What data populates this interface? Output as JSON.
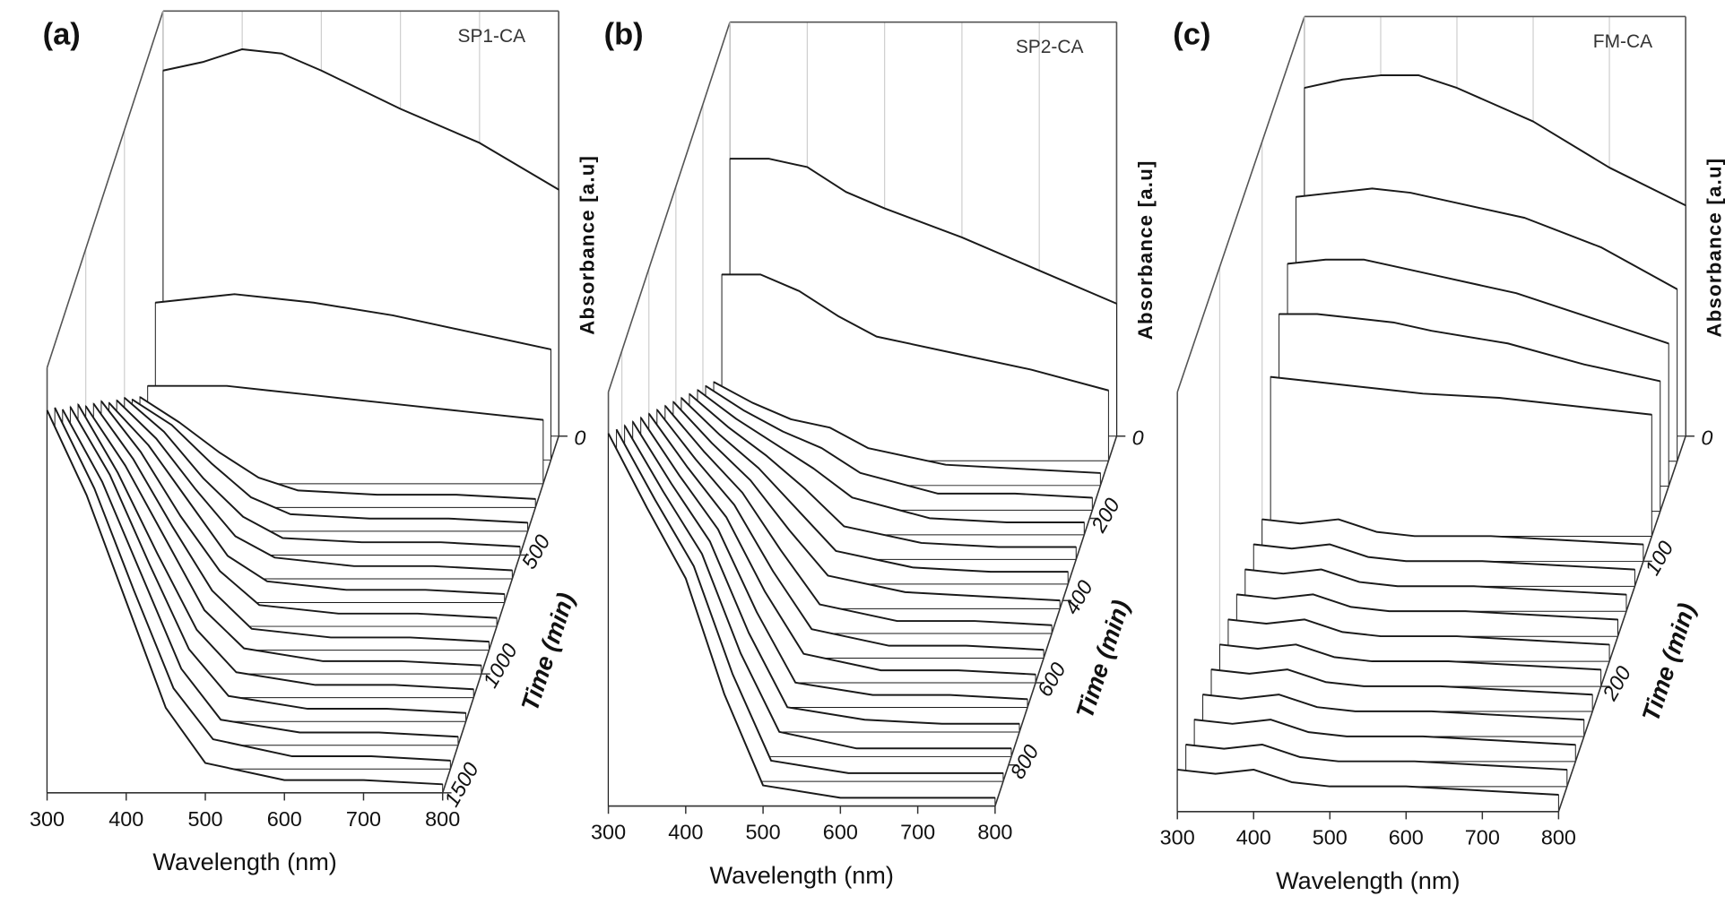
{
  "chart_data": [
    {
      "type": "waterfall",
      "label": "(a)",
      "title": "SP1-CA",
      "x_label": "Wavelength (nm)",
      "y_label": "Absorbance [a.u]",
      "z_label": "Time (min)",
      "color": "#1a1a1a",
      "x": [
        300,
        350,
        400,
        450,
        500,
        600,
        700,
        800
      ],
      "xlim": [
        300,
        800
      ],
      "xticks": [
        300,
        400,
        500,
        600,
        700,
        800
      ],
      "ylim": [
        0,
        1
      ],
      "yticks": [
        0
      ],
      "zlim": [
        0,
        1500
      ],
      "zticks": [
        0,
        500,
        1000,
        1500
      ],
      "series": [
        {
          "z": 0,
          "values": [
            0.86,
            0.88,
            0.91,
            0.9,
            0.86,
            0.77,
            0.69,
            0.58
          ]
        },
        {
          "z": 100,
          "values": [
            0.37,
            0.38,
            0.39,
            0.38,
            0.37,
            0.34,
            0.3,
            0.26
          ]
        },
        {
          "z": 200,
          "values": [
            0.23,
            0.23,
            0.23,
            0.22,
            0.21,
            0.19,
            0.17,
            0.15
          ]
        },
        {
          "z": 300,
          "values": [
            0.26,
            0.2,
            0.13,
            0.07,
            0.04,
            0.03,
            0.03,
            0.02
          ]
        },
        {
          "z": 400,
          "values": [
            0.31,
            0.25,
            0.16,
            0.08,
            0.04,
            0.03,
            0.03,
            0.02
          ]
        },
        {
          "z": 500,
          "values": [
            0.37,
            0.29,
            0.18,
            0.09,
            0.04,
            0.03,
            0.03,
            0.02
          ]
        },
        {
          "z": 600,
          "values": [
            0.42,
            0.33,
            0.21,
            0.1,
            0.05,
            0.03,
            0.03,
            0.02
          ]
        },
        {
          "z": 700,
          "values": [
            0.47,
            0.37,
            0.24,
            0.11,
            0.05,
            0.03,
            0.03,
            0.02
          ]
        },
        {
          "z": 800,
          "values": [
            0.53,
            0.41,
            0.26,
            0.13,
            0.05,
            0.03,
            0.03,
            0.02
          ]
        },
        {
          "z": 900,
          "values": [
            0.58,
            0.45,
            0.29,
            0.14,
            0.05,
            0.03,
            0.03,
            0.02
          ]
        },
        {
          "z": 1000,
          "values": [
            0.63,
            0.49,
            0.32,
            0.15,
            0.06,
            0.03,
            0.03,
            0.02
          ]
        },
        {
          "z": 1100,
          "values": [
            0.69,
            0.53,
            0.34,
            0.16,
            0.06,
            0.03,
            0.03,
            0.02
          ]
        },
        {
          "z": 1200,
          "values": [
            0.74,
            0.58,
            0.37,
            0.17,
            0.06,
            0.03,
            0.03,
            0.02
          ]
        },
        {
          "z": 1300,
          "values": [
            0.79,
            0.62,
            0.4,
            0.18,
            0.06,
            0.03,
            0.03,
            0.02
          ]
        },
        {
          "z": 1400,
          "values": [
            0.85,
            0.66,
            0.42,
            0.19,
            0.07,
            0.03,
            0.03,
            0.02
          ]
        },
        {
          "z": 1500,
          "values": [
            0.9,
            0.7,
            0.45,
            0.2,
            0.07,
            0.03,
            0.03,
            0.02
          ]
        }
      ]
    },
    {
      "type": "waterfall",
      "label": "(b)",
      "title": "SP2-CA",
      "x_label": "Wavelength (nm)",
      "y_label": "Absorbance [a.u]",
      "z_label": "Time (min)",
      "color": "#1a1a1a",
      "x": [
        300,
        350,
        400,
        450,
        500,
        600,
        700,
        800
      ],
      "xlim": [
        300,
        800
      ],
      "xticks": [
        300,
        400,
        500,
        600,
        700,
        800
      ],
      "ylim": [
        0,
        1
      ],
      "yticks": [
        0
      ],
      "zlim": [
        0,
        900
      ],
      "zticks": [
        0,
        200,
        400,
        600,
        800
      ],
      "series": [
        {
          "z": 0,
          "values": [
            0.67,
            0.67,
            0.65,
            0.59,
            0.55,
            0.48,
            0.4,
            0.32
          ]
        },
        {
          "z": 60,
          "values": [
            0.45,
            0.45,
            0.41,
            0.35,
            0.3,
            0.26,
            0.22,
            0.17
          ]
        },
        {
          "z": 120,
          "values": [
            0.25,
            0.2,
            0.16,
            0.14,
            0.09,
            0.05,
            0.04,
            0.03
          ]
        },
        {
          "z": 180,
          "values": [
            0.3,
            0.24,
            0.19,
            0.15,
            0.09,
            0.04,
            0.04,
            0.03
          ]
        },
        {
          "z": 240,
          "values": [
            0.35,
            0.28,
            0.22,
            0.16,
            0.09,
            0.04,
            0.03,
            0.03
          ]
        },
        {
          "z": 300,
          "values": [
            0.4,
            0.32,
            0.25,
            0.17,
            0.08,
            0.04,
            0.03,
            0.03
          ]
        },
        {
          "z": 360,
          "values": [
            0.45,
            0.36,
            0.28,
            0.18,
            0.08,
            0.04,
            0.03,
            0.03
          ]
        },
        {
          "z": 420,
          "values": [
            0.5,
            0.4,
            0.31,
            0.19,
            0.08,
            0.04,
            0.03,
            0.02
          ]
        },
        {
          "z": 480,
          "values": [
            0.55,
            0.44,
            0.34,
            0.2,
            0.07,
            0.03,
            0.03,
            0.02
          ]
        },
        {
          "z": 540,
          "values": [
            0.6,
            0.48,
            0.37,
            0.21,
            0.07,
            0.03,
            0.03,
            0.02
          ]
        },
        {
          "z": 600,
          "values": [
            0.65,
            0.52,
            0.4,
            0.22,
            0.07,
            0.03,
            0.03,
            0.02
          ]
        },
        {
          "z": 660,
          "values": [
            0.7,
            0.56,
            0.43,
            0.23,
            0.06,
            0.03,
            0.03,
            0.02
          ]
        },
        {
          "z": 720,
          "values": [
            0.75,
            0.6,
            0.46,
            0.24,
            0.06,
            0.03,
            0.02,
            0.02
          ]
        },
        {
          "z": 780,
          "values": [
            0.8,
            0.64,
            0.49,
            0.25,
            0.06,
            0.02,
            0.02,
            0.02
          ]
        },
        {
          "z": 840,
          "values": [
            0.85,
            0.68,
            0.52,
            0.26,
            0.05,
            0.02,
            0.02,
            0.02
          ]
        },
        {
          "z": 900,
          "values": [
            0.9,
            0.72,
            0.55,
            0.27,
            0.05,
            0.02,
            0.02,
            0.02
          ]
        }
      ]
    },
    {
      "type": "waterfall",
      "label": "(c)",
      "title": "FM-CA",
      "x_label": "Wavelength (nm)",
      "y_label": "Absorbance [a.u]",
      "z_label": "Time (min)",
      "color": "#1a1a1a",
      "x": [
        300,
        350,
        400,
        450,
        500,
        600,
        700,
        800
      ],
      "xlim": [
        300,
        800
      ],
      "xticks": [
        300,
        400,
        500,
        600,
        700,
        800
      ],
      "ylim": [
        0,
        1
      ],
      "yticks": [
        0
      ],
      "zlim": [
        0,
        300
      ],
      "zticks": [
        0,
        100,
        200
      ],
      "series": [
        {
          "z": 0,
          "values": [
            0.83,
            0.85,
            0.86,
            0.86,
            0.83,
            0.75,
            0.64,
            0.55
          ]
        },
        {
          "z": 20,
          "values": [
            0.63,
            0.64,
            0.65,
            0.64,
            0.62,
            0.58,
            0.51,
            0.41
          ]
        },
        {
          "z": 40,
          "values": [
            0.53,
            0.54,
            0.54,
            0.52,
            0.5,
            0.46,
            0.4,
            0.34
          ]
        },
        {
          "z": 60,
          "values": [
            0.47,
            0.47,
            0.46,
            0.45,
            0.43,
            0.4,
            0.35,
            0.31
          ]
        },
        {
          "z": 80,
          "values": [
            0.38,
            0.37,
            0.36,
            0.35,
            0.34,
            0.33,
            0.31,
            0.29
          ]
        },
        {
          "z": 100,
          "values": [
            0.1,
            0.09,
            0.1,
            0.07,
            0.06,
            0.06,
            0.05,
            0.04
          ]
        },
        {
          "z": 120,
          "values": [
            0.1,
            0.09,
            0.1,
            0.07,
            0.06,
            0.06,
            0.05,
            0.04
          ]
        },
        {
          "z": 140,
          "values": [
            0.1,
            0.09,
            0.1,
            0.07,
            0.06,
            0.06,
            0.05,
            0.04
          ]
        },
        {
          "z": 160,
          "values": [
            0.1,
            0.09,
            0.1,
            0.07,
            0.06,
            0.06,
            0.05,
            0.04
          ]
        },
        {
          "z": 180,
          "values": [
            0.1,
            0.09,
            0.1,
            0.07,
            0.06,
            0.06,
            0.05,
            0.04
          ]
        },
        {
          "z": 200,
          "values": [
            0.1,
            0.09,
            0.1,
            0.07,
            0.06,
            0.06,
            0.05,
            0.04
          ]
        },
        {
          "z": 220,
          "values": [
            0.1,
            0.09,
            0.1,
            0.07,
            0.06,
            0.06,
            0.05,
            0.04
          ]
        },
        {
          "z": 240,
          "values": [
            0.1,
            0.09,
            0.1,
            0.07,
            0.06,
            0.06,
            0.05,
            0.04
          ]
        },
        {
          "z": 260,
          "values": [
            0.1,
            0.09,
            0.1,
            0.07,
            0.06,
            0.06,
            0.05,
            0.04
          ]
        },
        {
          "z": 280,
          "values": [
            0.1,
            0.09,
            0.1,
            0.07,
            0.06,
            0.06,
            0.05,
            0.04
          ]
        },
        {
          "z": 300,
          "values": [
            0.1,
            0.09,
            0.1,
            0.07,
            0.06,
            0.06,
            0.05,
            0.04
          ]
        }
      ]
    }
  ]
}
